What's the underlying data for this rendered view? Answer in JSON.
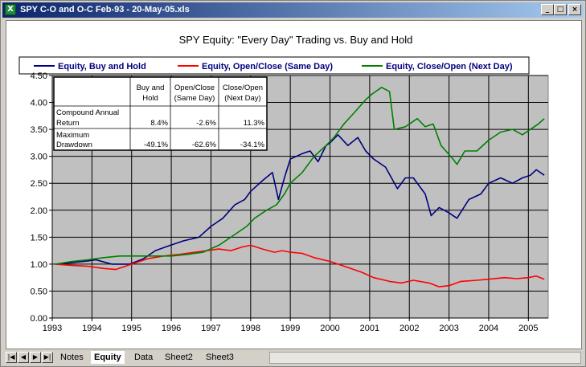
{
  "window": {
    "title": "SPY C-O and O-C  Feb-93 - 20-May-05.xls",
    "icon": "excel-icon",
    "controls": {
      "minimize": "_",
      "maximize": "□",
      "close": "×"
    }
  },
  "sheet_tabs": {
    "nav_icons": [
      "first-sheet-icon",
      "prev-sheet-icon",
      "next-sheet-icon",
      "last-sheet-icon"
    ],
    "items": [
      {
        "label": "Notes",
        "active": false
      },
      {
        "label": "Equity",
        "active": true
      },
      {
        "label": "Data",
        "active": false
      },
      {
        "label": "Sheet2",
        "active": false
      },
      {
        "label": "Sheet3",
        "active": false
      }
    ]
  },
  "colors": {
    "plot_bg": "#c0c0c0",
    "buy_hold": "#000080",
    "open_close": "#ff0000",
    "close_open": "#008000"
  },
  "stats_table": {
    "headers": [
      "Buy and Hold",
      "Open/Close (Same Day)",
      "Close/Open (Next Day)"
    ],
    "header_lines": [
      [
        "Buy and",
        "Hold"
      ],
      [
        "Open/Close",
        "(Same Day)"
      ],
      [
        "Close/Open",
        "(Next Day)"
      ]
    ],
    "rows": [
      {
        "label_lines": [
          "Compound Annual",
          "Return"
        ],
        "values": [
          "8.4%",
          "-2.6%",
          "11.3%"
        ]
      },
      {
        "label_lines": [
          "Maximum",
          "Drawdown"
        ],
        "values": [
          "-49.1%",
          "-62.6%",
          "-34.1%"
        ]
      }
    ]
  },
  "chart_data": {
    "type": "line",
    "title": "SPY Equity:  \"Every Day\" Trading vs. Buy and Hold",
    "xlabel": "",
    "ylabel": "",
    "xlim": [
      1993,
      2005.5
    ],
    "ylim": [
      0,
      4.5
    ],
    "x_ticks": [
      "1993",
      "1994",
      "1995",
      "1996",
      "1997",
      "1998",
      "1999",
      "2000",
      "2001",
      "2002",
      "2003",
      "2004",
      "2005"
    ],
    "y_ticks": [
      "0.00",
      "0.50",
      "1.00",
      "1.50",
      "2.00",
      "2.50",
      "3.00",
      "3.50",
      "4.00",
      "4.50"
    ],
    "grid": true,
    "legend_position": "top",
    "series": [
      {
        "name": "Equity, Buy and Hold",
        "color": "#000080",
        "points": [
          [
            1993.08,
            1.0
          ],
          [
            1993.5,
            1.03
          ],
          [
            1993.9,
            1.06
          ],
          [
            1994.1,
            1.08
          ],
          [
            1994.5,
            1.0
          ],
          [
            1994.95,
            1.0
          ],
          [
            1995.3,
            1.1
          ],
          [
            1995.6,
            1.25
          ],
          [
            1995.9,
            1.33
          ],
          [
            1996.3,
            1.43
          ],
          [
            1996.7,
            1.5
          ],
          [
            1997.0,
            1.7
          ],
          [
            1997.3,
            1.85
          ],
          [
            1997.6,
            2.1
          ],
          [
            1997.85,
            2.2
          ],
          [
            1998.0,
            2.35
          ],
          [
            1998.3,
            2.55
          ],
          [
            1998.55,
            2.7
          ],
          [
            1998.7,
            2.2
          ],
          [
            1998.85,
            2.6
          ],
          [
            1999.0,
            2.95
          ],
          [
            1999.3,
            3.05
          ],
          [
            1999.5,
            3.1
          ],
          [
            1999.7,
            2.9
          ],
          [
            1999.9,
            3.2
          ],
          [
            2000.0,
            3.25
          ],
          [
            2000.2,
            3.4
          ],
          [
            2000.45,
            3.2
          ],
          [
            2000.7,
            3.35
          ],
          [
            2000.9,
            3.1
          ],
          [
            2001.1,
            2.95
          ],
          [
            2001.4,
            2.8
          ],
          [
            2001.7,
            2.4
          ],
          [
            2001.9,
            2.6
          ],
          [
            2002.1,
            2.6
          ],
          [
            2002.4,
            2.3
          ],
          [
            2002.55,
            1.9
          ],
          [
            2002.75,
            2.05
          ],
          [
            2003.0,
            1.95
          ],
          [
            2003.2,
            1.85
          ],
          [
            2003.5,
            2.2
          ],
          [
            2003.8,
            2.3
          ],
          [
            2004.0,
            2.5
          ],
          [
            2004.3,
            2.6
          ],
          [
            2004.6,
            2.5
          ],
          [
            2004.85,
            2.6
          ],
          [
            2005.05,
            2.65
          ],
          [
            2005.2,
            2.75
          ],
          [
            2005.4,
            2.65
          ]
        ]
      },
      {
        "name": "Equity, Open/Close (Same Day)",
        "color": "#ff0000",
        "points": [
          [
            1993.08,
            1.0
          ],
          [
            1993.4,
            0.98
          ],
          [
            1993.9,
            0.96
          ],
          [
            1994.3,
            0.92
          ],
          [
            1994.6,
            0.9
          ],
          [
            1995.0,
            1.0
          ],
          [
            1995.4,
            1.1
          ],
          [
            1995.8,
            1.15
          ],
          [
            1996.2,
            1.18
          ],
          [
            1996.6,
            1.22
          ],
          [
            1996.9,
            1.25
          ],
          [
            1997.2,
            1.28
          ],
          [
            1997.5,
            1.25
          ],
          [
            1997.8,
            1.32
          ],
          [
            1998.0,
            1.35
          ],
          [
            1998.3,
            1.28
          ],
          [
            1998.6,
            1.22
          ],
          [
            1998.8,
            1.25
          ],
          [
            1999.0,
            1.22
          ],
          [
            1999.3,
            1.2
          ],
          [
            1999.6,
            1.12
          ],
          [
            2000.0,
            1.05
          ],
          [
            2000.4,
            0.95
          ],
          [
            2000.8,
            0.85
          ],
          [
            2001.1,
            0.75
          ],
          [
            2001.5,
            0.68
          ],
          [
            2001.8,
            0.65
          ],
          [
            2002.1,
            0.7
          ],
          [
            2002.5,
            0.65
          ],
          [
            2002.75,
            0.58
          ],
          [
            2003.0,
            0.6
          ],
          [
            2003.3,
            0.68
          ],
          [
            2003.7,
            0.7
          ],
          [
            2004.0,
            0.72
          ],
          [
            2004.4,
            0.75
          ],
          [
            2004.7,
            0.73
          ],
          [
            2005.0,
            0.75
          ],
          [
            2005.2,
            0.78
          ],
          [
            2005.4,
            0.72
          ]
        ]
      },
      {
        "name": "Equity, Close/Open (Next Day)",
        "color": "#008000",
        "points": [
          [
            1993.08,
            1.0
          ],
          [
            1993.5,
            1.05
          ],
          [
            1993.9,
            1.08
          ],
          [
            1994.3,
            1.12
          ],
          [
            1994.7,
            1.15
          ],
          [
            1995.0,
            1.15
          ],
          [
            1995.5,
            1.15
          ],
          [
            1996.0,
            1.15
          ],
          [
            1996.4,
            1.18
          ],
          [
            1996.8,
            1.22
          ],
          [
            1997.2,
            1.35
          ],
          [
            1997.6,
            1.55
          ],
          [
            1997.9,
            1.7
          ],
          [
            1998.1,
            1.85
          ],
          [
            1998.4,
            2.0
          ],
          [
            1998.65,
            2.1
          ],
          [
            1998.85,
            2.3
          ],
          [
            1999.0,
            2.5
          ],
          [
            1999.3,
            2.7
          ],
          [
            1999.6,
            3.0
          ],
          [
            1999.9,
            3.2
          ],
          [
            2000.1,
            3.35
          ],
          [
            2000.35,
            3.6
          ],
          [
            2000.6,
            3.8
          ],
          [
            2000.9,
            4.05
          ],
          [
            2001.05,
            4.15
          ],
          [
            2001.3,
            4.28
          ],
          [
            2001.5,
            4.2
          ],
          [
            2001.62,
            3.5
          ],
          [
            2001.9,
            3.55
          ],
          [
            2002.2,
            3.7
          ],
          [
            2002.4,
            3.55
          ],
          [
            2002.6,
            3.6
          ],
          [
            2002.8,
            3.2
          ],
          [
            2003.1,
            2.95
          ],
          [
            2003.2,
            2.85
          ],
          [
            2003.4,
            3.1
          ],
          [
            2003.7,
            3.1
          ],
          [
            2004.0,
            3.3
          ],
          [
            2004.3,
            3.45
          ],
          [
            2004.6,
            3.5
          ],
          [
            2004.85,
            3.4
          ],
          [
            2005.05,
            3.5
          ],
          [
            2005.25,
            3.6
          ],
          [
            2005.4,
            3.7
          ]
        ]
      }
    ]
  }
}
